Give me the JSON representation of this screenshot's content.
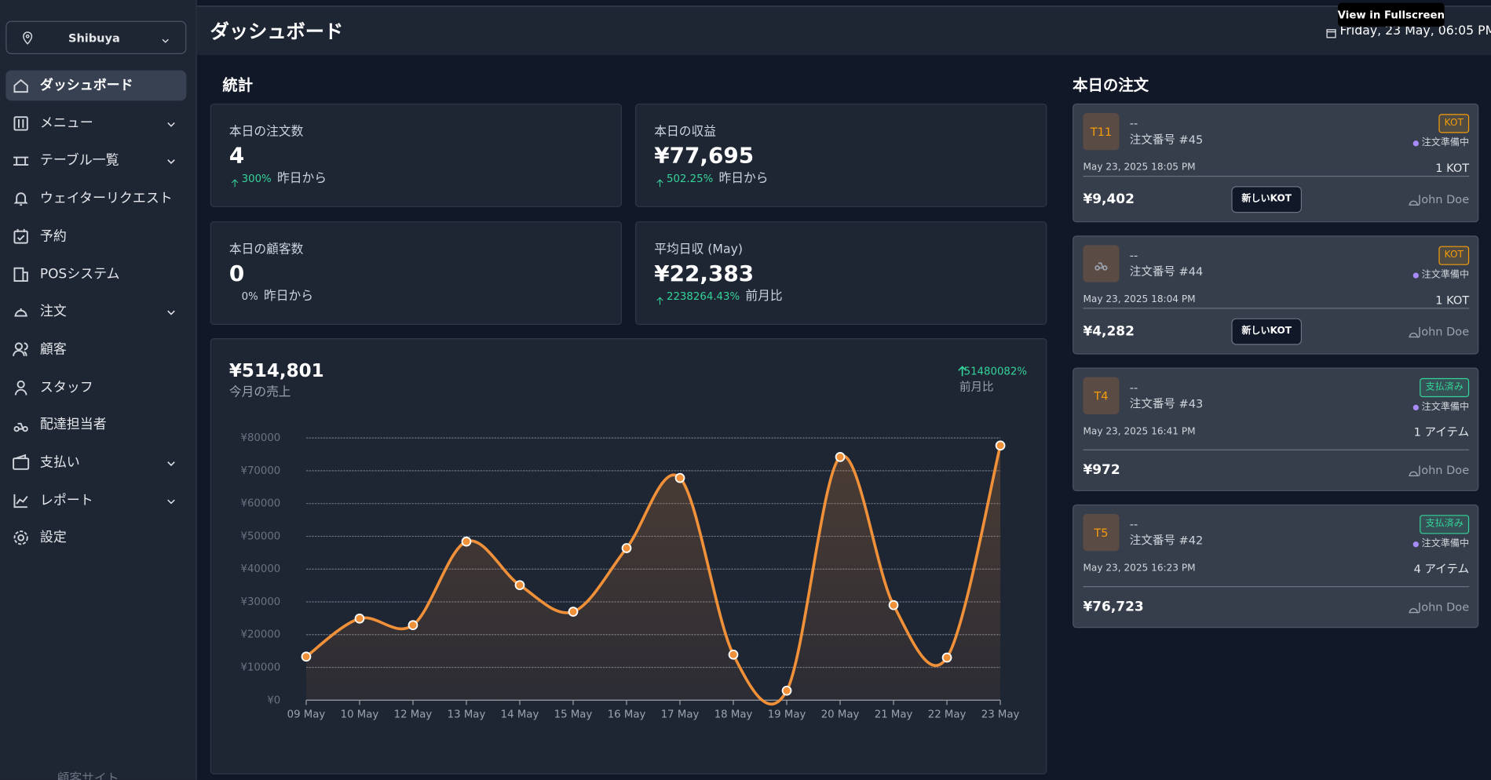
{
  "sidebar": {
    "location": "Shibuya",
    "menu": [
      {
        "label": "ダッシュボード",
        "active": true
      },
      {
        "label": "メニュー",
        "expandable": true
      },
      {
        "label": "テーブル一覧",
        "expandable": true
      },
      {
        "label": "ウェイターリクエスト"
      },
      {
        "label": "予約"
      },
      {
        "label": "POSシステム"
      },
      {
        "label": "注文",
        "expandable": true
      },
      {
        "label": "顧客"
      },
      {
        "label": "スタッフ"
      },
      {
        "label": "配達担当者"
      },
      {
        "label": "支払い",
        "expandable": true
      },
      {
        "label": "レポート",
        "expandable": true
      },
      {
        "label": "設定"
      }
    ],
    "footer": "顧客サイト"
  },
  "header": {
    "title": "ダッシュボード",
    "datetime": "Friday, 23 May, 06:05 PM",
    "tooltip": "View in Fullscreen"
  },
  "stats": {
    "title": "統計",
    "cards": [
      {
        "label": "本日の注文数",
        "value": "4",
        "change": "300%",
        "note": "昨日から",
        "trend": "up"
      },
      {
        "label": "本日の収益",
        "value": "¥77,695",
        "change": "502.25%",
        "note": "昨日から",
        "trend": "up"
      },
      {
        "label": "本日の顧客数",
        "value": "0",
        "change": "0%",
        "note": "昨日から"
      },
      {
        "label": "平均日収 (May)",
        "value": "¥22,383",
        "change": "2238264.43%",
        "note": "前月比",
        "trend": "up"
      }
    ]
  },
  "chart_data": {
    "type": "line",
    "title": "¥514,801",
    "subtitle": "今月の売上",
    "change": "51480082%",
    "change_note": "前月比",
    "categories": [
      "09 May",
      "10 May",
      "12 May",
      "13 May",
      "14 May",
      "15 May",
      "16 May",
      "17 May",
      "18 May",
      "19 May",
      "20 May",
      "21 May",
      "22 May",
      "23 May"
    ],
    "values": [
      13300,
      24900,
      22900,
      48400,
      35100,
      27000,
      46400,
      67800,
      13900,
      2900,
      74200,
      29000,
      13000,
      77695
    ],
    "color": "#f0913a",
    "ylim": [
      0,
      80000
    ],
    "yticks": [
      {
        "value": 0,
        "label": "¥0"
      },
      {
        "value": 10000,
        "label": "¥10000"
      },
      {
        "value": 20000,
        "label": "¥20000"
      },
      {
        "value": 30000,
        "label": "¥30000"
      },
      {
        "value": 40000,
        "label": "¥40000"
      },
      {
        "value": 50000,
        "label": "¥50000"
      },
      {
        "value": 60000,
        "label": "¥60000"
      },
      {
        "value": 70000,
        "label": "¥70000"
      },
      {
        "value": 80000,
        "label": "¥80000"
      }
    ],
    "grid": true
  },
  "orders": {
    "title": "本日の注文",
    "items": [
      {
        "table": "T11",
        "name": "--",
        "number": "注文番号 #45",
        "badge": "KOT",
        "badge_color": "#f59e0b",
        "status": "注文準備中",
        "time": "May 23, 2025 18:05 PM",
        "count": "1 KOT",
        "total": "¥9,402",
        "button": "新しいKOT",
        "waiter": "John Doe"
      },
      {
        "name": "--",
        "number": "注文番号 #44",
        "badge": "KOT",
        "badge_color": "#f59e0b",
        "status": "注文準備中",
        "time": "May 23, 2025 18:04 PM",
        "count": "1 KOT",
        "total": "¥4,282",
        "button": "新しいKOT",
        "waiter": "John Doe"
      },
      {
        "table": "T4",
        "name": "--",
        "number": "注文番号 #43",
        "badge": "支払済み",
        "badge_color": "#34d399",
        "status": "注文準備中",
        "time": "May 23, 2025 16:41 PM",
        "count": "1 アイテム",
        "total": "¥972",
        "waiter": "John Doe"
      },
      {
        "table": "T5",
        "name": "--",
        "number": "注文番号 #42",
        "badge": "支払済み",
        "badge_color": "#34d399",
        "status": "注文準備中",
        "time": "May 23, 2025 16:23 PM",
        "count": "4 アイテム",
        "total": "¥76,723",
        "waiter": "John Doe"
      }
    ]
  }
}
